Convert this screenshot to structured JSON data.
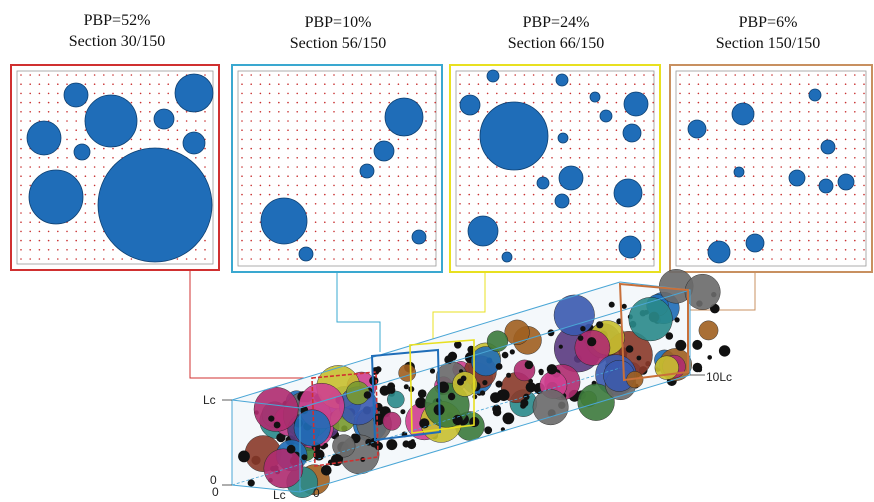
{
  "panels": [
    {
      "id": "p1",
      "pbp": "PBP=52%",
      "section": "Section 30/150",
      "color": "#d03030"
    },
    {
      "id": "p2",
      "pbp": "PBP=10%",
      "section": "Section 56/150",
      "color": "#3aa8d0"
    },
    {
      "id": "p3",
      "pbp": "PBP=24%",
      "section": "Section 66/150",
      "color": "#e8e020"
    },
    {
      "id": "p4",
      "pbp": "PBP=6%",
      "section": "Section 150/150",
      "color": "#c89060"
    }
  ],
  "axes": {
    "lc_vertical": "Lc",
    "lc_horizontal": "Lc",
    "zero_left": "0",
    "zero_bottom_left": "0",
    "zero_bottom": "0",
    "ten_lc": "10Lc"
  },
  "colors": {
    "particle": "#1f6db8",
    "particle_edge": "#0d3f70",
    "grid_dot": "#c83030",
    "box_edge": "#4aa6d6"
  }
}
